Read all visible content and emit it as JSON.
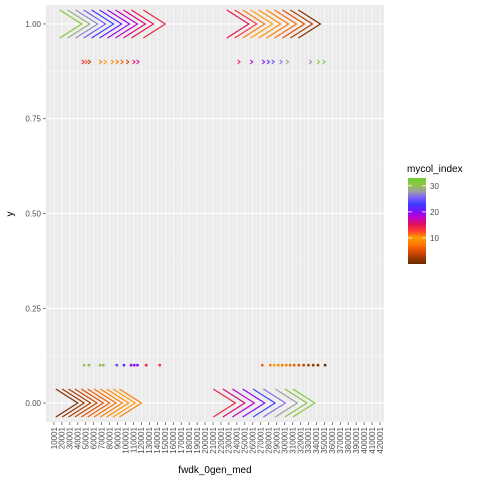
{
  "chart_data": {
    "type": "scatter",
    "title": "",
    "xlabel": "fwdk_0gen_med",
    "ylabel": "y",
    "y_ticks": [
      "0.00",
      "0.25",
      "0.50",
      "0.75",
      "1.00"
    ],
    "y_tick_values": [
      0.0,
      0.25,
      0.5,
      0.75,
      1.0
    ],
    "ylim": [
      -0.05,
      1.05
    ],
    "x_categories": [
      "10001",
      "20001",
      "30001",
      "40001",
      "50001",
      "60001",
      "70001",
      "80001",
      "90001",
      "100001",
      "110001",
      "120001",
      "130001",
      "140001",
      "150001",
      "160001",
      "170001",
      "180001",
      "190001",
      "200001",
      "210001",
      "220001",
      "230001",
      "240001",
      "250001",
      "260001",
      "270001",
      "280001",
      "290001",
      "300001",
      "310001",
      "320001",
      "330001",
      "340001",
      "350001",
      "360001",
      "370001",
      "380001",
      "390001",
      "400001",
      "410001",
      "420001"
    ],
    "x_range": [
      1,
      425001
    ],
    "panel_background": "#ebebeb",
    "grid": true,
    "legend": {
      "title": "mycol_index",
      "position": "right",
      "ticks": [
        10,
        20,
        30
      ],
      "min": 0,
      "max": 33,
      "colors": [
        "#6b2a00",
        "#a33a00",
        "#e04e00",
        "#ff7a00",
        "#ff9e00",
        "#ff3a30",
        "#e0105a",
        "#c400c8",
        "#7a10ff",
        "#3c3cff",
        "#7a60ff",
        "#a0a0a0",
        "#8ec63f",
        "#6fcf3a"
      ]
    },
    "series": [
      {
        "shape": "chevron-large",
        "y": 1.0,
        "points": [
          {
            "x": 45000,
            "c": 31
          },
          {
            "x": 55000,
            "c": 29
          },
          {
            "x": 65000,
            "c": 27
          },
          {
            "x": 75000,
            "c": 25
          },
          {
            "x": 85000,
            "c": 23
          },
          {
            "x": 95000,
            "c": 21
          },
          {
            "x": 105000,
            "c": 19
          },
          {
            "x": 115000,
            "c": 18
          },
          {
            "x": 125000,
            "c": 16
          },
          {
            "x": 135000,
            "c": 15
          },
          {
            "x": 150000,
            "c": 14
          },
          {
            "x": 255000,
            "c": 15
          },
          {
            "x": 265000,
            "c": 13
          },
          {
            "x": 275000,
            "c": 11
          },
          {
            "x": 285000,
            "c": 10
          },
          {
            "x": 295000,
            "c": 9
          },
          {
            "x": 305000,
            "c": 8
          },
          {
            "x": 315000,
            "c": 7
          },
          {
            "x": 325000,
            "c": 5
          },
          {
            "x": 335000,
            "c": 3
          },
          {
            "x": 345000,
            "c": 1
          }
        ]
      },
      {
        "shape": "chevron-small",
        "y": 0.9,
        "points": [
          {
            "x": 48000,
            "c": 14
          },
          {
            "x": 52000,
            "c": 12
          },
          {
            "x": 56000,
            "c": 3
          },
          {
            "x": 70000,
            "c": 8
          },
          {
            "x": 76000,
            "c": 10
          },
          {
            "x": 85000,
            "c": 9
          },
          {
            "x": 91000,
            "c": 7
          },
          {
            "x": 97000,
            "c": 6
          },
          {
            "x": 104000,
            "c": 4
          },
          {
            "x": 112000,
            "c": 15
          },
          {
            "x": 117000,
            "c": 17
          },
          {
            "x": 244000,
            "c": 14
          },
          {
            "x": 260000,
            "c": 19
          },
          {
            "x": 275000,
            "c": 20
          },
          {
            "x": 281000,
            "c": 22
          },
          {
            "x": 287000,
            "c": 24
          },
          {
            "x": 297000,
            "c": 26
          },
          {
            "x": 305000,
            "c": 28
          },
          {
            "x": 334000,
            "c": 27
          },
          {
            "x": 344000,
            "c": 31
          },
          {
            "x": 351000,
            "c": 32
          }
        ]
      },
      {
        "shape": "dot-small",
        "y": 0.1,
        "points": [
          {
            "x": 48000,
            "c": 31
          },
          {
            "x": 54000,
            "c": 30
          },
          {
            "x": 68000,
            "c": 31
          },
          {
            "x": 72000,
            "c": 29
          },
          {
            "x": 89000,
            "c": 24
          },
          {
            "x": 98000,
            "c": 22
          },
          {
            "x": 107000,
            "c": 20
          },
          {
            "x": 111000,
            "c": 19
          },
          {
            "x": 115000,
            "c": 21
          },
          {
            "x": 126000,
            "c": 14
          },
          {
            "x": 143000,
            "c": 13
          },
          {
            "x": 272000,
            "c": 12
          },
          {
            "x": 282000,
            "c": 11
          },
          {
            "x": 287000,
            "c": 10
          },
          {
            "x": 292000,
            "c": 9
          },
          {
            "x": 297000,
            "c": 8
          },
          {
            "x": 302000,
            "c": 8
          },
          {
            "x": 307000,
            "c": 7
          },
          {
            "x": 312000,
            "c": 6
          },
          {
            "x": 318000,
            "c": 5
          },
          {
            "x": 324000,
            "c": 4
          },
          {
            "x": 330000,
            "c": 3
          },
          {
            "x": 336000,
            "c": 2
          },
          {
            "x": 342000,
            "c": 1
          },
          {
            "x": 351000,
            "c": 0
          }
        ]
      },
      {
        "shape": "chevron-large",
        "y": 0.0,
        "points": [
          {
            "x": 40000,
            "c": 1
          },
          {
            "x": 48000,
            "c": 2
          },
          {
            "x": 56000,
            "c": 3
          },
          {
            "x": 64000,
            "c": 4
          },
          {
            "x": 72000,
            "c": 5
          },
          {
            "x": 80000,
            "c": 6
          },
          {
            "x": 88000,
            "c": 7
          },
          {
            "x": 96000,
            "c": 8
          },
          {
            "x": 104000,
            "c": 9
          },
          {
            "x": 112000,
            "c": 10
          },
          {
            "x": 120000,
            "c": 11
          },
          {
            "x": 238000,
            "c": 14
          },
          {
            "x": 250000,
            "c": 16
          },
          {
            "x": 262000,
            "c": 18
          },
          {
            "x": 275000,
            "c": 20
          },
          {
            "x": 288000,
            "c": 23
          },
          {
            "x": 301000,
            "c": 26
          },
          {
            "x": 316000,
            "c": 28
          },
          {
            "x": 328000,
            "c": 30
          },
          {
            "x": 338000,
            "c": 31
          }
        ]
      }
    ]
  }
}
